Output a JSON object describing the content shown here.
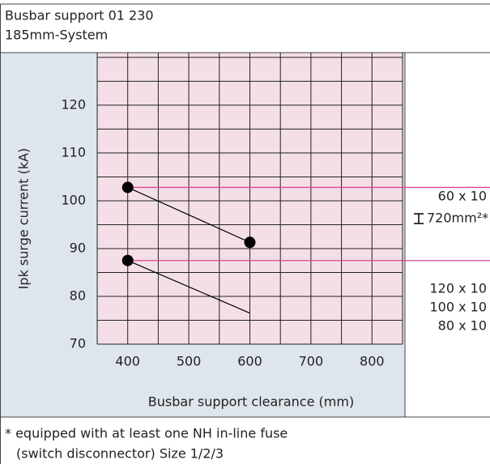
{
  "header": {
    "title": "Busbar support 01 230",
    "subtitle": "185mm-System"
  },
  "footnote": [
    "* equipped with at least one NH in-line fuse",
    "(switch disconnector) Size 1/2/3"
  ],
  "chart_data": {
    "type": "line",
    "xlabel": "Busbar support clearance (mm)",
    "ylabel": "Ipk surge current (kA)",
    "xlim": [
      350,
      850
    ],
    "ylim": [
      70,
      131
    ],
    "xticks": [
      400,
      500,
      600,
      700,
      800
    ],
    "yticks": [
      70,
      80,
      90,
      100,
      110,
      120
    ],
    "xgrid": [
      350,
      400,
      450,
      500,
      550,
      600,
      650,
      700,
      750,
      800,
      850
    ],
    "ygrid": [
      70,
      75,
      80,
      85,
      90,
      95,
      100,
      105,
      110,
      115,
      120,
      125,
      130
    ],
    "color": "#000000",
    "reference_color": "#e0448f",
    "series": [
      {
        "labels": [
          "60 x 10",
          "720mm²*"
        ],
        "x": [
          400,
          600
        ],
        "values": [
          102.8,
          91.3
        ],
        "markers": [
          true,
          true
        ]
      },
      {
        "labels": [
          "120 x 10",
          "100 x 10",
          "80 x 10"
        ],
        "x": [
          400,
          600
        ],
        "values": [
          87.5,
          76.5
        ],
        "markers": [
          true,
          false
        ]
      }
    ]
  }
}
